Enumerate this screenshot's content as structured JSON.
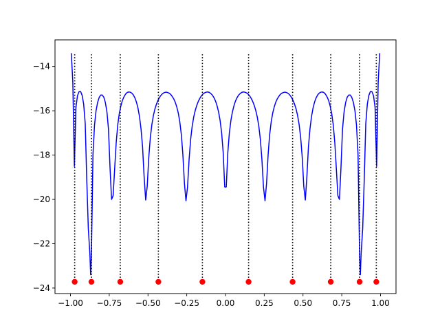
{
  "chart_data": {
    "type": "line",
    "title": "",
    "xlabel": "",
    "ylabel": "",
    "xlim": [
      -1.1,
      1.1
    ],
    "ylim": [
      -24.25,
      -12.8
    ],
    "x_ticks": [
      -1.0,
      -0.75,
      -0.5,
      -0.25,
      0.0,
      0.25,
      0.5,
      0.75,
      1.0
    ],
    "x_tick_labels": [
      "−1.00",
      "−0.75",
      "−0.50",
      "−0.25",
      "0.00",
      "0.25",
      "0.50",
      "0.75",
      "1.00"
    ],
    "y_ticks": [
      -24,
      -22,
      -20,
      -18,
      -16,
      -14
    ],
    "y_tick_labels": [
      "−24",
      "−22",
      "−20",
      "−18",
      "−16",
      "−14"
    ],
    "grid": false,
    "legend": "none",
    "series": [
      {
        "style": "line",
        "color": "#0000ff",
        "x": [
          -0.995,
          -0.985,
          -0.975,
          -0.965,
          -0.955,
          -0.945,
          -0.935,
          -0.925,
          -0.915,
          -0.905,
          -0.895,
          -0.885,
          -0.875,
          -0.87,
          -0.865,
          -0.855,
          -0.845,
          -0.835,
          -0.825,
          -0.815,
          -0.805,
          -0.795,
          -0.785,
          -0.775,
          -0.765,
          -0.755,
          -0.745,
          -0.735,
          -0.725,
          -0.715,
          -0.705,
          -0.695,
          -0.685,
          -0.675,
          -0.665,
          -0.655,
          -0.645,
          -0.635,
          -0.625,
          -0.615,
          -0.605,
          -0.595,
          -0.585,
          -0.575,
          -0.565,
          -0.555,
          -0.545,
          -0.535,
          -0.525,
          -0.515,
          -0.505,
          -0.495,
          -0.485,
          -0.475,
          -0.465,
          -0.455,
          -0.445,
          -0.435,
          -0.425,
          -0.415,
          -0.405,
          -0.395,
          -0.385,
          -0.375,
          -0.365,
          -0.355,
          -0.345,
          -0.335,
          -0.325,
          -0.315,
          -0.305,
          -0.295,
          -0.285,
          -0.275,
          -0.265,
          -0.255,
          -0.245,
          -0.235,
          -0.225,
          -0.215,
          -0.205,
          -0.195,
          -0.185,
          -0.175,
          -0.165,
          -0.155,
          -0.145,
          -0.135,
          -0.125,
          -0.115,
          -0.105,
          -0.095,
          -0.085,
          -0.075,
          -0.065,
          -0.055,
          -0.045,
          -0.035,
          -0.025,
          -0.015,
          -0.005,
          0.005,
          0.015,
          0.025,
          0.035,
          0.045,
          0.055,
          0.065,
          0.075,
          0.085,
          0.095,
          0.105,
          0.115,
          0.125,
          0.135,
          0.145,
          0.155,
          0.165,
          0.175,
          0.185,
          0.195,
          0.205,
          0.215,
          0.225,
          0.235,
          0.245,
          0.255,
          0.265,
          0.275,
          0.285,
          0.295,
          0.305,
          0.315,
          0.325,
          0.335,
          0.345,
          0.355,
          0.365,
          0.375,
          0.385,
          0.395,
          0.405,
          0.415,
          0.425,
          0.435,
          0.445,
          0.455,
          0.465,
          0.475,
          0.485,
          0.495,
          0.505,
          0.515,
          0.525,
          0.535,
          0.545,
          0.555,
          0.565,
          0.575,
          0.585,
          0.595,
          0.605,
          0.615,
          0.625,
          0.635,
          0.645,
          0.655,
          0.665,
          0.675,
          0.685,
          0.695,
          0.705,
          0.715,
          0.725,
          0.735,
          0.745,
          0.755,
          0.765,
          0.775,
          0.785,
          0.795,
          0.805,
          0.815,
          0.825,
          0.835,
          0.845,
          0.855,
          0.865,
          0.87,
          0.875,
          0.885,
          0.895,
          0.905,
          0.915,
          0.925,
          0.935,
          0.945,
          0.955,
          0.965,
          0.975,
          0.985,
          0.995
        ],
        "y": [
          -13.4,
          -14.71,
          -18.51,
          -15.85,
          -15.32,
          -15.14,
          -15.13,
          -15.3,
          -15.7,
          -16.58,
          -19.14,
          -21.32,
          -22.45,
          -23.4,
          -22.52,
          -17.96,
          -16.64,
          -15.99,
          -15.62,
          -15.4,
          -15.29,
          -15.29,
          -15.39,
          -15.63,
          -16.05,
          -16.82,
          -18.57,
          -20.0,
          -19.83,
          -18.61,
          -17.42,
          -16.63,
          -16.12,
          -15.78,
          -15.53,
          -15.37,
          -15.25,
          -15.18,
          -15.15,
          -15.16,
          -15.2,
          -15.28,
          -15.41,
          -15.6,
          -15.87,
          -16.26,
          -16.82,
          -17.64,
          -18.98,
          -20.03,
          -19.41,
          -18.1,
          -17.21,
          -16.62,
          -16.21,
          -15.91,
          -15.69,
          -15.52,
          -15.39,
          -15.29,
          -15.22,
          -15.18,
          -15.16,
          -15.17,
          -15.2,
          -15.25,
          -15.34,
          -15.45,
          -15.6,
          -15.81,
          -16.09,
          -16.49,
          -17.07,
          -17.98,
          -19.27,
          -20.06,
          -19.45,
          -18.21,
          -17.3,
          -16.7,
          -16.28,
          -15.98,
          -15.75,
          -15.57,
          -15.43,
          -15.32,
          -15.24,
          -15.19,
          -15.16,
          -15.15,
          -15.17,
          -15.22,
          -15.29,
          -15.4,
          -15.55,
          -15.76,
          -16.04,
          -16.43,
          -16.99,
          -17.88,
          -19.44,
          -19.44,
          -17.88,
          -16.99,
          -16.43,
          -16.04,
          -15.76,
          -15.55,
          -15.4,
          -15.29,
          -15.22,
          -15.17,
          -15.15,
          -15.16,
          -15.19,
          -15.24,
          -15.32,
          -15.43,
          -15.57,
          -15.75,
          -15.98,
          -16.28,
          -16.7,
          -17.3,
          -18.21,
          -19.45,
          -20.06,
          -19.27,
          -17.98,
          -17.07,
          -16.49,
          -16.09,
          -15.81,
          -15.6,
          -15.45,
          -15.34,
          -15.25,
          -15.2,
          -15.17,
          -15.16,
          -15.18,
          -15.22,
          -15.29,
          -15.39,
          -15.52,
          -15.69,
          -15.91,
          -16.21,
          -16.62,
          -17.21,
          -18.1,
          -19.41,
          -20.03,
          -18.98,
          -17.64,
          -16.82,
          -16.26,
          -15.87,
          -15.6,
          -15.41,
          -15.28,
          -15.2,
          -15.16,
          -15.15,
          -15.18,
          -15.25,
          -15.37,
          -15.53,
          -15.78,
          -16.12,
          -16.63,
          -17.42,
          -18.61,
          -19.83,
          -20.0,
          -18.57,
          -16.82,
          -16.05,
          -15.63,
          -15.39,
          -15.29,
          -15.29,
          -15.4,
          -15.62,
          -15.99,
          -16.64,
          -17.96,
          -22.52,
          -23.4,
          -22.45,
          -21.32,
          -19.14,
          -16.58,
          -15.7,
          -15.3,
          -15.13,
          -15.14,
          -15.32,
          -15.85,
          -18.51,
          -14.71,
          -13.4
        ]
      },
      {
        "style": "vlines-dotted",
        "color": "#000000",
        "x": [
          -0.973,
          -0.865,
          -0.679,
          -0.433,
          -0.149,
          0.149,
          0.433,
          0.679,
          0.865,
          0.973
        ],
        "y_top": -13.45,
        "y_bottom": -23.72
      },
      {
        "style": "markers",
        "color": "#ff0000",
        "x": [
          -0.973,
          -0.865,
          -0.679,
          -0.433,
          -0.149,
          0.149,
          0.433,
          0.679,
          0.865,
          0.973
        ],
        "y": [
          -23.72,
          -23.72,
          -23.72,
          -23.72,
          -23.72,
          -23.72,
          -23.72,
          -23.72,
          -23.72,
          -23.72
        ]
      }
    ]
  }
}
